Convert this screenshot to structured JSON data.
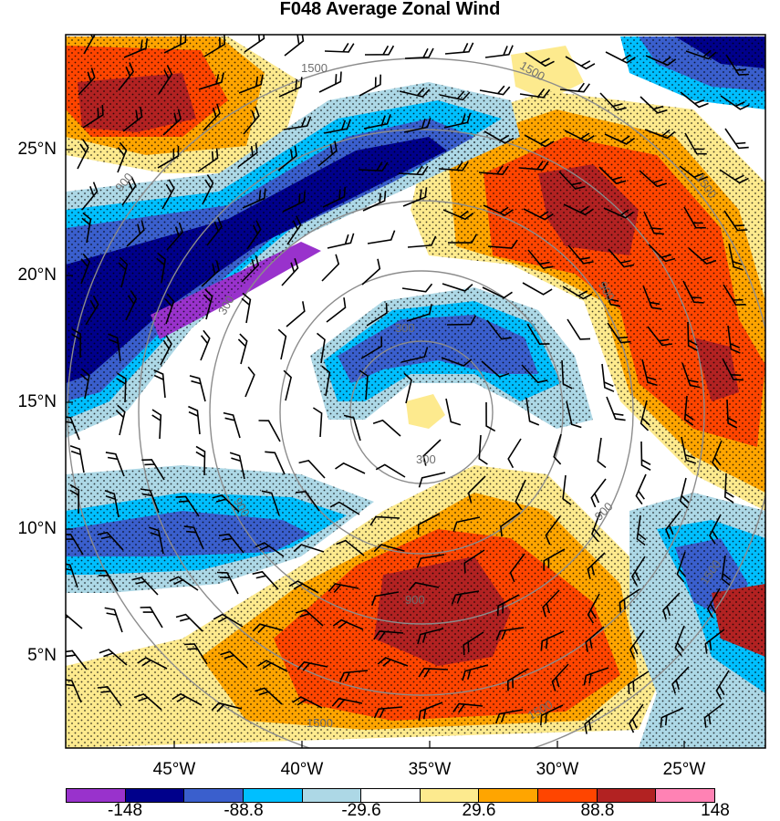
{
  "title": "F048 Average Zonal Wind",
  "map": {
    "lat_labels": [
      "25°N",
      "20°N",
      "15°N",
      "10°N",
      "5°N"
    ],
    "lon_labels": [
      "45°W",
      "40°W",
      "35°W",
      "30°W",
      "25°W"
    ],
    "height_contour_labels": [
      "300",
      "300",
      "300",
      "900",
      "900",
      "900",
      "900",
      "900",
      "1500",
      "1500",
      "1500",
      "1500",
      "1500",
      "1500"
    ],
    "shading": "zonal wind, stippled where significant",
    "overlays": "wind barbs; grey concentric height contours"
  },
  "colorbar": {
    "labels": [
      "-148",
      "-88.8",
      "-29.6",
      "29.6",
      "88.8",
      "148"
    ],
    "colors": [
      "#9932cc",
      "#00008b",
      "#3a5fcd",
      "#00bfff",
      "#add8e6",
      "#ffffff",
      "#fdea8e",
      "#ffa500",
      "#ff4500",
      "#b22222",
      "#ff82b4"
    ]
  }
}
